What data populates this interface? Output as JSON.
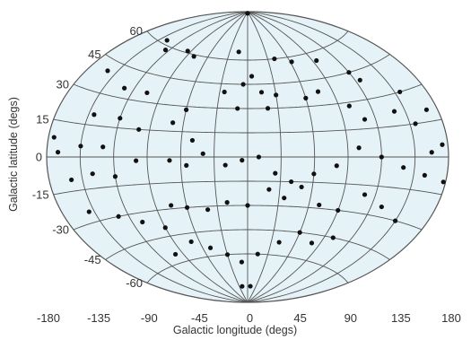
{
  "chart_data": {
    "type": "scatter",
    "projection": "aitoff",
    "title": "",
    "xlabel": "Galactic longitude (degs)",
    "ylabel": "Galactic latitude (degs)",
    "xlim": [
      -180,
      180
    ],
    "ylim": [
      -90,
      90
    ],
    "grid": true,
    "longitude_gridlines": [
      -150,
      -120,
      -90,
      -60,
      -30,
      0,
      30,
      60,
      90,
      120,
      150
    ],
    "latitude_gridlines": [
      -60,
      -45,
      -30,
      -15,
      0,
      15,
      30,
      45,
      60
    ],
    "x_tick_labels": [
      "-180",
      "-135",
      "-90",
      "-45",
      "0",
      "45",
      "90",
      "135",
      "180"
    ],
    "y_tick_labels": [
      "60",
      "45",
      "30",
      "15",
      "0",
      "-15",
      "-30",
      "-45",
      "-60"
    ],
    "colors": {
      "fill": "#e5f3f8",
      "grid": "#555555",
      "points": "#111111"
    },
    "points": [
      [
        -5,
        89
      ],
      [
        0,
        89
      ],
      [
        -140,
        62
      ],
      [
        -125,
        58
      ],
      [
        -95,
        61
      ],
      [
        -80,
        59
      ],
      [
        -15,
        65
      ],
      [
        -160,
        40
      ],
      [
        -130,
        35
      ],
      [
        -105,
        35
      ],
      [
        40,
        60
      ],
      [
        62,
        57
      ],
      [
        95,
        55
      ],
      [
        120,
        45
      ],
      [
        125,
        40
      ],
      [
        155,
        30
      ],
      [
        170,
        20
      ],
      [
        -175,
        8
      ],
      [
        -145,
        20
      ],
      [
        -120,
        20
      ],
      [
        -100,
        15
      ],
      [
        -170,
        2
      ],
      [
        -150,
        5
      ],
      [
        -130,
        5
      ],
      [
        -70,
        20
      ],
      [
        -60,
        28
      ],
      [
        -50,
        10
      ],
      [
        -5,
        45
      ],
      [
        -25,
        40
      ],
      [
        -10,
        30
      ],
      [
        5,
        50
      ],
      [
        15,
        40
      ],
      [
        20,
        30
      ],
      [
        30,
        38
      ],
      [
        60,
        35
      ],
      [
        75,
        38
      ],
      [
        100,
        28
      ],
      [
        110,
        20
      ],
      [
        140,
        22
      ],
      [
        155,
        15
      ],
      [
        165,
        2
      ],
      [
        175,
        5
      ],
      [
        -160,
        -10
      ],
      [
        -140,
        -8
      ],
      [
        -120,
        -10
      ],
      [
        -100,
        -2
      ],
      [
        -70,
        -2
      ],
      [
        -55,
        -5
      ],
      [
        -40,
        2
      ],
      [
        -20,
        -5
      ],
      [
        -5,
        -2
      ],
      [
        10,
        0
      ],
      [
        25,
        -10
      ],
      [
        40,
        -15
      ],
      [
        60,
        -10
      ],
      [
        80,
        -5
      ],
      [
        100,
        5
      ],
      [
        120,
        0
      ],
      [
        140,
        -5
      ],
      [
        160,
        -8
      ],
      [
        178,
        -10
      ],
      [
        -155,
        -25
      ],
      [
        -130,
        -30
      ],
      [
        -110,
        -35
      ],
      [
        -90,
        -40
      ],
      [
        -75,
        -28
      ],
      [
        -60,
        -30
      ],
      [
        -40,
        -32
      ],
      [
        -20,
        -28
      ],
      [
        0,
        -30
      ],
      [
        20,
        -20
      ],
      [
        35,
        -25
      ],
      [
        50,
        -18
      ],
      [
        70,
        -28
      ],
      [
        90,
        -30
      ],
      [
        110,
        -20
      ],
      [
        130,
        -25
      ],
      [
        150,
        -30
      ],
      [
        -100,
        -55
      ],
      [
        -70,
        -50
      ],
      [
        -50,
        -55
      ],
      [
        -30,
        -60
      ],
      [
        -10,
        -65
      ],
      [
        15,
        -60
      ],
      [
        40,
        -52
      ],
      [
        60,
        -45
      ],
      [
        80,
        -50
      ],
      [
        100,
        -45
      ],
      [
        -20,
        -80
      ],
      [
        10,
        -80
      ]
    ]
  }
}
